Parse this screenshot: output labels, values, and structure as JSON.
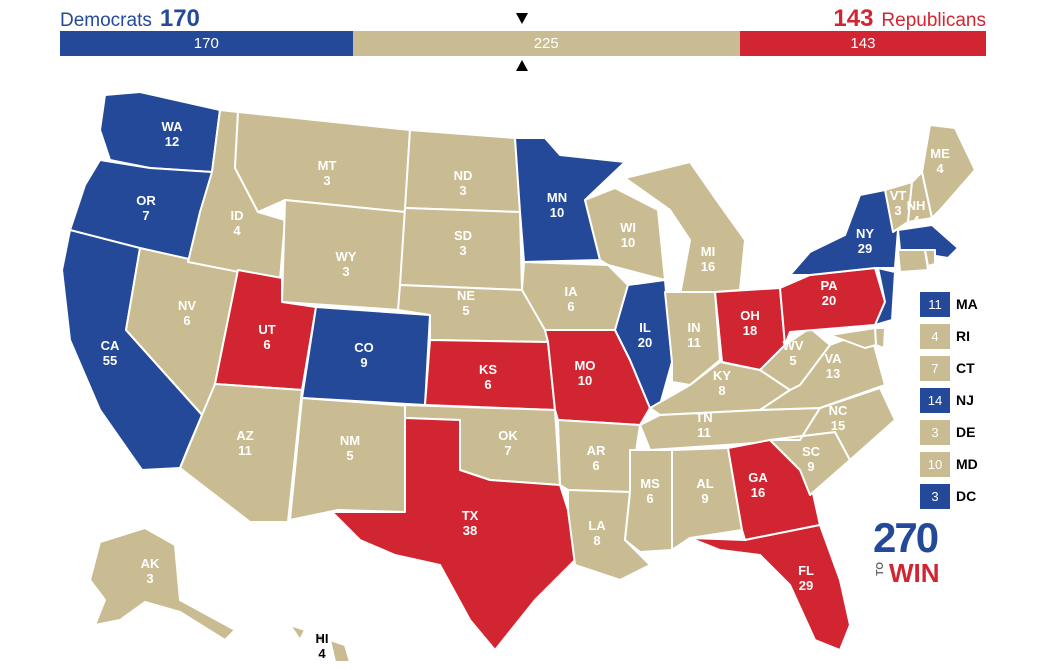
{
  "header": {
    "dem_name": "Democrats",
    "dem_total": "170",
    "rep_name": "Republicans",
    "rep_total": "143"
  },
  "bar": {
    "dem": 170,
    "tossup": 225,
    "rep": 143
  },
  "colors": {
    "dem": "#244999",
    "rep": "#d22532",
    "tossup": "#c9bc92"
  },
  "states": [
    {
      "abbr": "WA",
      "ev": "12",
      "party": "dem"
    },
    {
      "abbr": "OR",
      "ev": "7",
      "party": "dem"
    },
    {
      "abbr": "CA",
      "ev": "55",
      "party": "dem"
    },
    {
      "abbr": "NV",
      "ev": "6",
      "party": "tossup"
    },
    {
      "abbr": "ID",
      "ev": "4",
      "party": "tossup"
    },
    {
      "abbr": "MT",
      "ev": "3",
      "party": "tossup"
    },
    {
      "abbr": "WY",
      "ev": "3",
      "party": "tossup"
    },
    {
      "abbr": "UT",
      "ev": "6",
      "party": "rep"
    },
    {
      "abbr": "AZ",
      "ev": "11",
      "party": "tossup"
    },
    {
      "abbr": "CO",
      "ev": "9",
      "party": "dem"
    },
    {
      "abbr": "NM",
      "ev": "5",
      "party": "tossup"
    },
    {
      "abbr": "ND",
      "ev": "3",
      "party": "tossup"
    },
    {
      "abbr": "SD",
      "ev": "3",
      "party": "tossup"
    },
    {
      "abbr": "NE",
      "ev": "5",
      "party": "tossup"
    },
    {
      "abbr": "KS",
      "ev": "6",
      "party": "rep"
    },
    {
      "abbr": "OK",
      "ev": "7",
      "party": "tossup"
    },
    {
      "abbr": "TX",
      "ev": "38",
      "party": "rep"
    },
    {
      "abbr": "MN",
      "ev": "10",
      "party": "dem"
    },
    {
      "abbr": "IA",
      "ev": "6",
      "party": "tossup"
    },
    {
      "abbr": "MO",
      "ev": "10",
      "party": "rep"
    },
    {
      "abbr": "AR",
      "ev": "6",
      "party": "tossup"
    },
    {
      "abbr": "LA",
      "ev": "8",
      "party": "tossup"
    },
    {
      "abbr": "WI",
      "ev": "10",
      "party": "tossup"
    },
    {
      "abbr": "IL",
      "ev": "20",
      "party": "dem"
    },
    {
      "abbr": "MI",
      "ev": "16",
      "party": "tossup"
    },
    {
      "abbr": "IN",
      "ev": "11",
      "party": "tossup"
    },
    {
      "abbr": "OH",
      "ev": "18",
      "party": "rep"
    },
    {
      "abbr": "KY",
      "ev": "8",
      "party": "tossup"
    },
    {
      "abbr": "TN",
      "ev": "11",
      "party": "tossup"
    },
    {
      "abbr": "MS",
      "ev": "6",
      "party": "tossup"
    },
    {
      "abbr": "AL",
      "ev": "9",
      "party": "tossup"
    },
    {
      "abbr": "GA",
      "ev": "16",
      "party": "rep"
    },
    {
      "abbr": "FL",
      "ev": "29",
      "party": "rep"
    },
    {
      "abbr": "SC",
      "ev": "9",
      "party": "tossup"
    },
    {
      "abbr": "NC",
      "ev": "15",
      "party": "tossup"
    },
    {
      "abbr": "VA",
      "ev": "13",
      "party": "tossup"
    },
    {
      "abbr": "WV",
      "ev": "5",
      "party": "tossup"
    },
    {
      "abbr": "PA",
      "ev": "20",
      "party": "rep"
    },
    {
      "abbr": "NY",
      "ev": "29",
      "party": "dem"
    },
    {
      "abbr": "VT",
      "ev": "3",
      "party": "tossup"
    },
    {
      "abbr": "NH",
      "ev": "4",
      "party": "tossup"
    },
    {
      "abbr": "ME",
      "ev": "4",
      "party": "tossup"
    },
    {
      "abbr": "AK",
      "ev": "3",
      "party": "tossup"
    },
    {
      "abbr": "HI",
      "ev": "4",
      "party": "tossup"
    }
  ],
  "side_list": [
    {
      "abbr": "MA",
      "ev": "11",
      "party": "dem"
    },
    {
      "abbr": "RI",
      "ev": "4",
      "party": "tossup"
    },
    {
      "abbr": "CT",
      "ev": "7",
      "party": "tossup"
    },
    {
      "abbr": "NJ",
      "ev": "14",
      "party": "dem"
    },
    {
      "abbr": "DE",
      "ev": "3",
      "party": "tossup"
    },
    {
      "abbr": "MD",
      "ev": "10",
      "party": "tossup"
    },
    {
      "abbr": "DC",
      "ev": "3",
      "party": "dem"
    }
  ],
  "logo": {
    "number": "270",
    "to": "TO",
    "win": "WIN"
  }
}
